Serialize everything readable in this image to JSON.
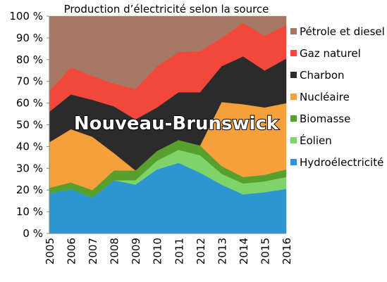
{
  "chart_data": {
    "type": "area",
    "stacked": true,
    "title": "Production d’électricité selon la source",
    "annotation": "Nouveau-Brunswick",
    "x": [
      "2005",
      "2006",
      "2007",
      "2008",
      "2009",
      "2010",
      "2011",
      "2012",
      "2013",
      "2014",
      "2015",
      "2016"
    ],
    "ylim": [
      0,
      100
    ],
    "yticks": [
      "0 %",
      "10 %",
      "20 %",
      "30 %",
      "40 %",
      "50 %",
      "60 %",
      "70 %",
      "80 %",
      "90 %",
      "100 %"
    ],
    "legend_position": "right",
    "series": [
      {
        "name": "Hydroélectricité",
        "color": "#2e95d3",
        "values": [
          18.5,
          20.5,
          16.5,
          24.5,
          22.5,
          29.5,
          32.5,
          28,
          22.5,
          18,
          19,
          20.5
        ]
      },
      {
        "name": "Éolien",
        "color": "#7ed46b",
        "values": [
          0,
          0,
          0,
          0,
          2,
          4,
          6,
          8,
          5,
          5,
          5,
          5.5
        ]
      },
      {
        "name": "Biomasse",
        "color": "#58a02e",
        "values": [
          2.5,
          3,
          3.5,
          4.5,
          4.5,
          4.5,
          4.5,
          4.5,
          3.5,
          3,
          3,
          3.5
        ]
      },
      {
        "name": "Nucléaire",
        "color": "#f5a03a",
        "values": [
          21,
          24.5,
          24.5,
          8,
          0,
          0,
          0,
          0,
          29.5,
          33.5,
          31,
          30.5
        ]
      },
      {
        "name": "Charbon",
        "color": "#2b2b2b",
        "values": [
          14,
          16,
          17,
          21.5,
          23.5,
          20,
          22,
          24.5,
          16.5,
          22,
          17,
          20.5
        ]
      },
      {
        "name": "Gaz naturel",
        "color": "#f2473b",
        "values": [
          9.5,
          12.5,
          11,
          10.5,
          14,
          19,
          18.5,
          19,
          13,
          15.5,
          16,
          15.5
        ]
      },
      {
        "name": "Pétrole et diesel",
        "color": "#a57866",
        "values": [
          34.5,
          23.5,
          27.5,
          31,
          33.5,
          23,
          16.5,
          16,
          10,
          3,
          9,
          4
        ]
      }
    ],
    "legend_order": [
      "Pétrole et diesel",
      "Gaz naturel",
      "Charbon",
      "Nucléaire",
      "Biomasse",
      "Éolien",
      "Hydroélectricité"
    ]
  }
}
